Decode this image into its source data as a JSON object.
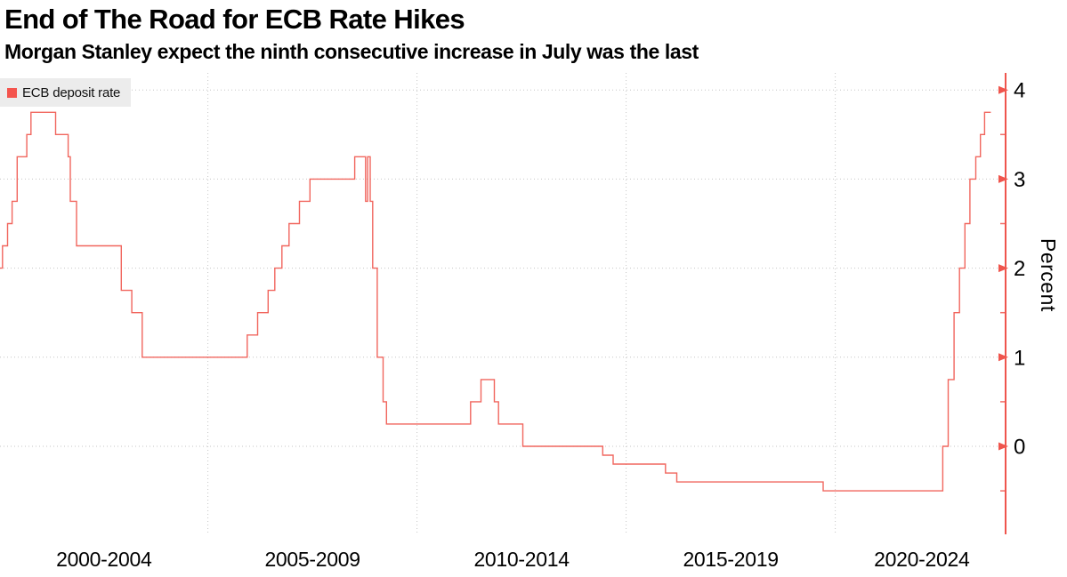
{
  "header": {
    "title": "End of The Road for ECB Rate Hikes",
    "subtitle": "Morgan Stanley expect the ninth consecutive increase in July was the last"
  },
  "legend": {
    "label": "ECB deposit rate",
    "swatch_color": "#f4544d"
  },
  "colors": {
    "line": "#ef554d",
    "axis": "#ef554d",
    "grid": "#c6c6c6",
    "legend_bg": "#ececec",
    "text": "#000000"
  },
  "chart_data": {
    "type": "line",
    "style": "step-after",
    "title": "End of The Road for ECB Rate Hikes",
    "subtitle": "Morgan Stanley expect the ninth consecutive increase in July was the last",
    "series": [
      {
        "name": "ECB deposit rate",
        "color": "#ef554d",
        "points": [
          [
            1999.84,
            2.0
          ],
          [
            2000.09,
            2.25
          ],
          [
            2000.21,
            2.5
          ],
          [
            2000.32,
            2.75
          ],
          [
            2000.44,
            3.25
          ],
          [
            2000.67,
            3.5
          ],
          [
            2000.77,
            3.75
          ],
          [
            2001.36,
            3.5
          ],
          [
            2001.66,
            3.25
          ],
          [
            2001.71,
            2.75
          ],
          [
            2001.86,
            2.25
          ],
          [
            2002.93,
            1.75
          ],
          [
            2003.18,
            1.5
          ],
          [
            2003.43,
            1.0
          ],
          [
            2005.94,
            1.25
          ],
          [
            2006.19,
            1.5
          ],
          [
            2006.44,
            1.75
          ],
          [
            2006.6,
            2.0
          ],
          [
            2006.77,
            2.25
          ],
          [
            2006.94,
            2.5
          ],
          [
            2007.19,
            2.75
          ],
          [
            2007.44,
            3.0
          ],
          [
            2008.51,
            3.25
          ],
          [
            2008.77,
            2.75
          ],
          [
            2008.82,
            3.25
          ],
          [
            2008.88,
            2.75
          ],
          [
            2008.94,
            2.0
          ],
          [
            2009.05,
            1.0
          ],
          [
            2009.19,
            0.5
          ],
          [
            2009.27,
            0.25
          ],
          [
            2011.28,
            0.5
          ],
          [
            2011.53,
            0.75
          ],
          [
            2011.85,
            0.5
          ],
          [
            2011.95,
            0.25
          ],
          [
            2012.53,
            0.0
          ],
          [
            2014.44,
            -0.1
          ],
          [
            2014.69,
            -0.2
          ],
          [
            2015.94,
            -0.3
          ],
          [
            2016.21,
            -0.4
          ],
          [
            2019.71,
            -0.5
          ],
          [
            2022.57,
            0.0
          ],
          [
            2022.7,
            0.75
          ],
          [
            2022.84,
            1.5
          ],
          [
            2022.97,
            2.0
          ],
          [
            2023.1,
            2.5
          ],
          [
            2023.22,
            3.0
          ],
          [
            2023.36,
            3.25
          ],
          [
            2023.47,
            3.5
          ],
          [
            2023.57,
            3.75
          ],
          [
            2023.72,
            3.75
          ]
        ]
      }
    ],
    "xlabel": "",
    "ylabel": "Percent",
    "x_labels": [
      "2000-2004",
      "2005-2009",
      "2010-2014",
      "2015-2019",
      "2020-2024"
    ],
    "x_gridline_years": [
      2005,
      2010,
      2015,
      2020
    ],
    "y_ticks": [
      0,
      1,
      2,
      3,
      4
    ],
    "y_minor_ticks": [
      -0.5,
      0.5,
      1.5,
      2.5,
      3.5
    ],
    "ylim": [
      -1.0,
      4.2
    ],
    "xlim": [
      2000,
      2024
    ],
    "grid": true,
    "legend_position": "top-left",
    "y_axis_side": "right"
  }
}
